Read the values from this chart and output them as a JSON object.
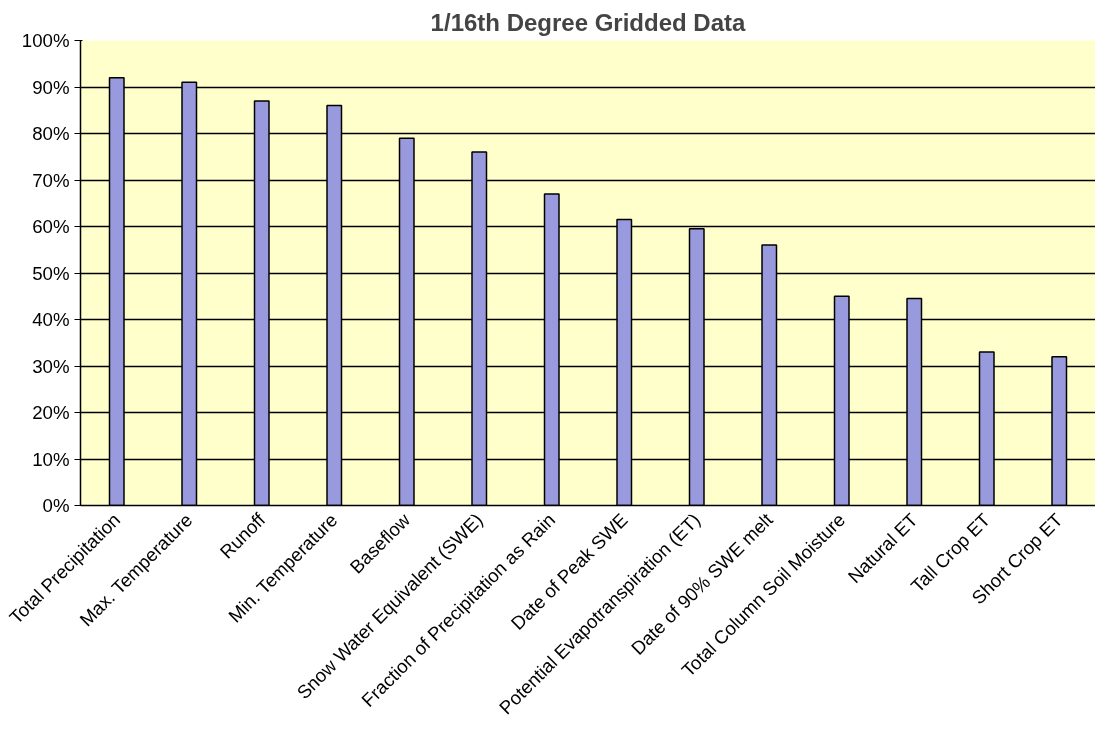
{
  "chart_data": {
    "type": "bar",
    "title": "1/16th Degree Gridded Data",
    "categories": [
      "Total Precipitation",
      "Max. Temperature",
      "Runoff",
      "Min. Temperature",
      "Baseflow",
      "Snow Water Equivalent (SWE)",
      "Fraction of Precipitation as Rain",
      "Date of Peak SWE",
      "Potential Evapotranspiration (ET)",
      "Date of 90% SWE melt",
      "Total Column Soil Moisture",
      "Natural ET",
      "Tall Crop ET",
      "Short Crop ET"
    ],
    "values": [
      92,
      91,
      87,
      86,
      79,
      76,
      67,
      61.5,
      59.5,
      56,
      45,
      44.5,
      33,
      32
    ],
    "color": "#9999dd",
    "ylim": [
      0,
      100
    ],
    "yticks": [
      {
        "value": 0,
        "label": "0%"
      },
      {
        "value": 10,
        "label": "10%"
      },
      {
        "value": 20,
        "label": "20%"
      },
      {
        "value": 30,
        "label": "30%"
      },
      {
        "value": 40,
        "label": "40%"
      },
      {
        "value": 50,
        "label": "50%"
      },
      {
        "value": 60,
        "label": "60%"
      },
      {
        "value": 70,
        "label": "70%"
      },
      {
        "value": 80,
        "label": "80%"
      },
      {
        "value": 90,
        "label": "90%"
      },
      {
        "value": 100,
        "label": "100%"
      }
    ],
    "grid": "y"
  }
}
